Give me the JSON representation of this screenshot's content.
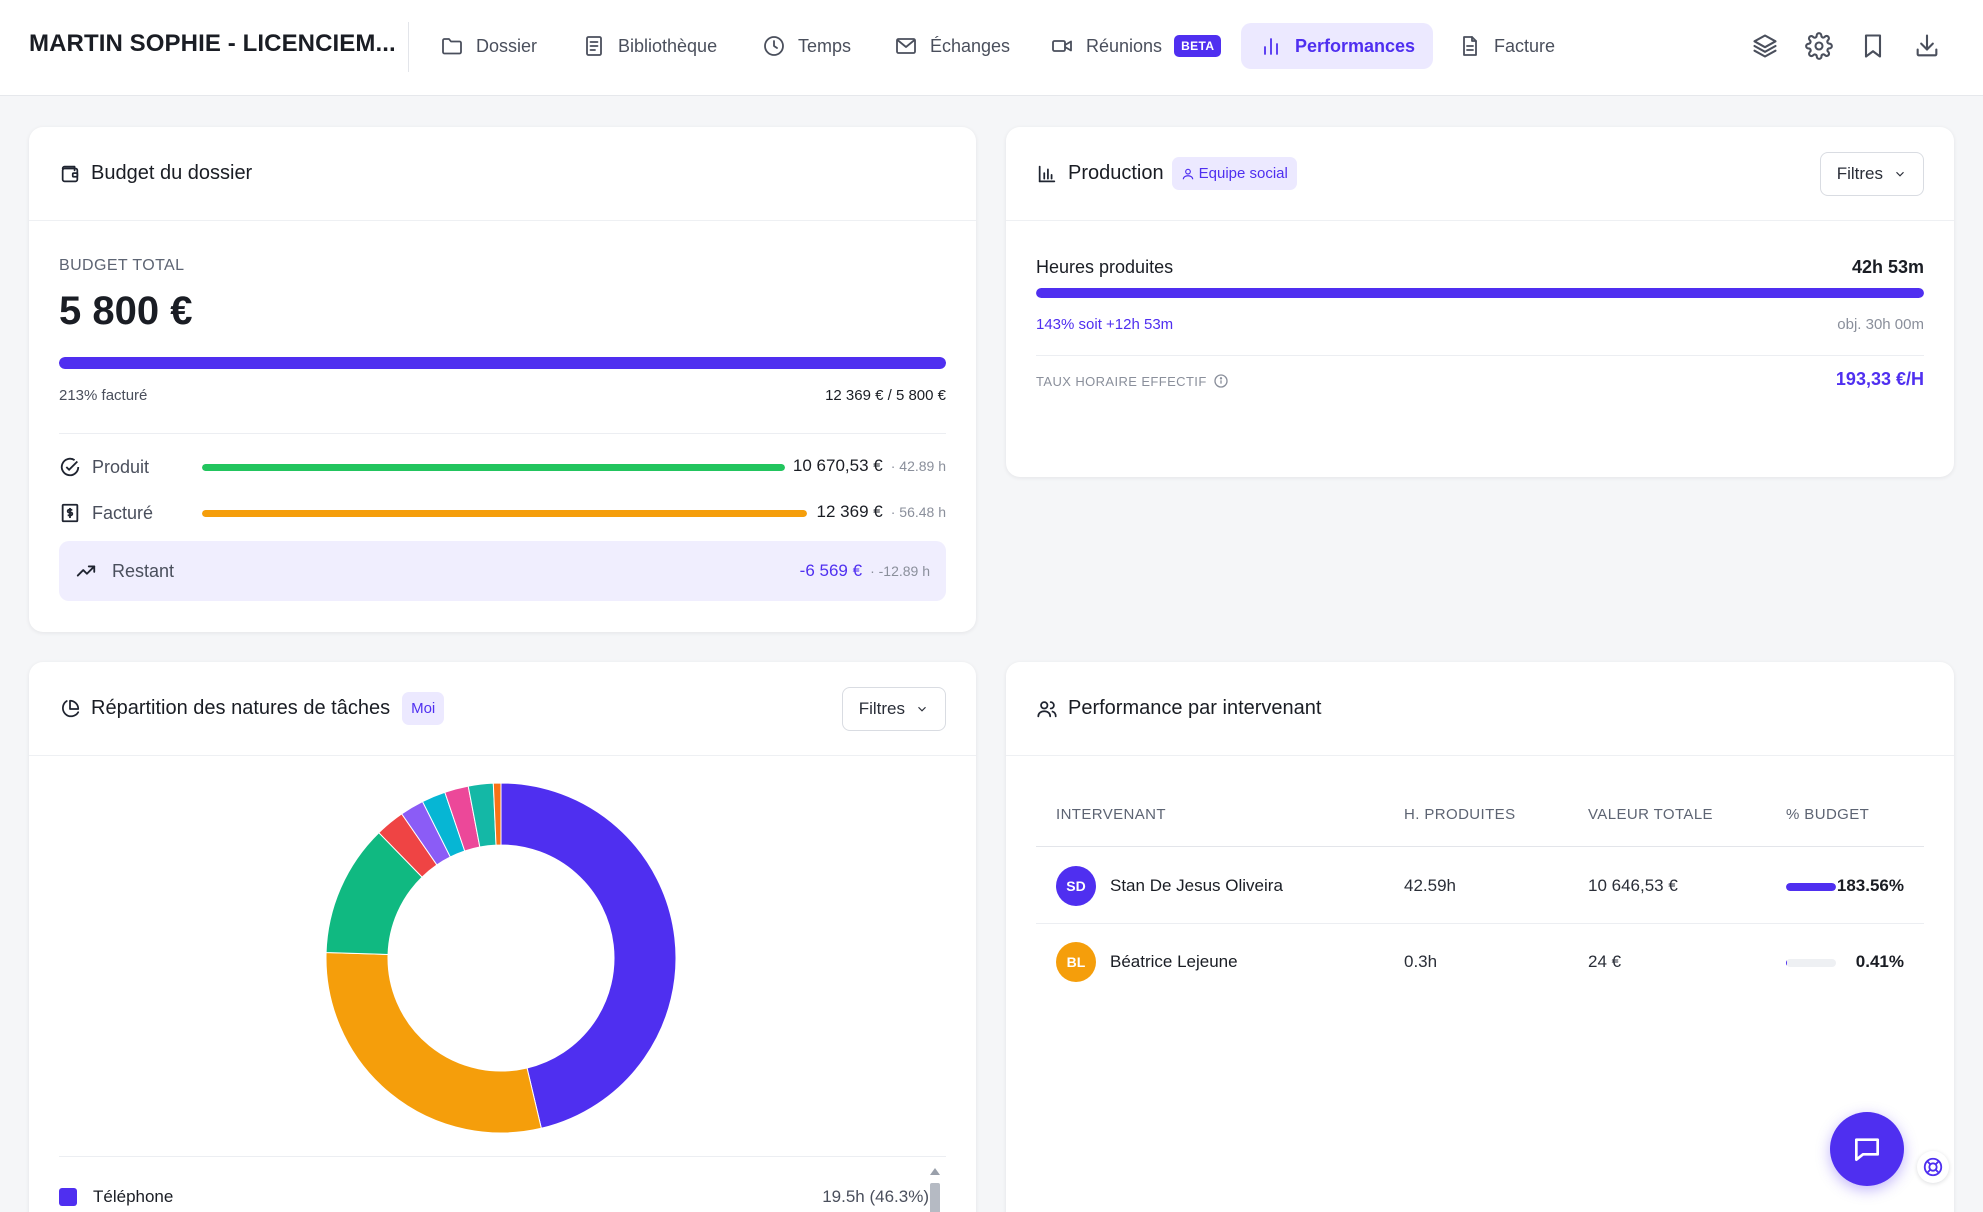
{
  "header": {
    "title": "MARTIN SOPHIE - LICENCIEM...",
    "nav": [
      {
        "label": "Dossier",
        "icon": "folder-icon"
      },
      {
        "label": "Bibliothèque",
        "icon": "book-icon"
      },
      {
        "label": "Temps",
        "icon": "clock-icon"
      },
      {
        "label": "Échanges",
        "icon": "mail-icon"
      },
      {
        "label": "Réunions",
        "icon": "video-icon",
        "badge": "BETA"
      },
      {
        "label": "Performances",
        "icon": "bar-chart-icon",
        "active": true
      },
      {
        "label": "Facture",
        "icon": "file-icon"
      }
    ],
    "tools": [
      "layers-icon",
      "settings-icon",
      "bookmark-icon",
      "download-icon"
    ]
  },
  "budget": {
    "title": "Budget du dossier",
    "total_label": "BUDGET TOTAL",
    "total_value": "5 800 €",
    "progress_pct": 100,
    "billed_pct_text": "213% facturé",
    "billed_ratio_text": "12 369 € / 5 800 €",
    "rows": [
      {
        "label": "Produit",
        "value": "10 670,53 €",
        "sub": "· 42.89 h",
        "fill_pct": 100,
        "color": "#22c55e"
      },
      {
        "label": "Facturé",
        "value": "12 369 €",
        "sub": "· 56.48 h",
        "fill_pct": 100,
        "color": "#f59e0b"
      }
    ],
    "remaining": {
      "label": "Restant",
      "value": "-6 569 €",
      "sub": "· -12.89 h"
    }
  },
  "production": {
    "title": "Production",
    "chip": "Equipe social",
    "filter_label": "Filtres",
    "hours_label": "Heures produites",
    "hours_value": "42h 53m",
    "progress_pct": 100,
    "progress_text": "143% soit +12h 53m",
    "objective_text": "obj. 30h 00m",
    "rate_label": "TAUX HORAIRE EFFECTIF",
    "rate_value": "193,33 €/H"
  },
  "tasks": {
    "title": "Répartition des natures de tâches",
    "chip": "Moi",
    "filter_label": "Filtres",
    "legend_first": {
      "label": "Téléphone",
      "value": "19.5h (46.3%)"
    }
  },
  "chart_data": {
    "type": "pie",
    "variant": "donut",
    "categories": [
      "Téléphone",
      "",
      "",
      "",
      "",
      "",
      "",
      "",
      ""
    ],
    "values": [
      46.3,
      29.2,
      12.2,
      2.7,
      2.2,
      2.2,
      2.2,
      2.3,
      0.7
    ],
    "colors": [
      "#4f2ff0",
      "#f59e0b",
      "#10b981",
      "#ef4444",
      "#8b5cf6",
      "#06b6d4",
      "#ec4899",
      "#14b8a6",
      "#f97316"
    ]
  },
  "performance": {
    "title": "Performance par intervenant",
    "columns": [
      "INTERVENANT",
      "H. PRODUITES",
      "VALEUR TOTALE",
      "% BUDGET"
    ],
    "rows": [
      {
        "initials": "SD",
        "name": "Stan De Jesus Oliveira",
        "hours": "42.59h",
        "value": "10 646,53 €",
        "pct": "183.56%",
        "pct_fill": 100,
        "avatar_color": "#4f2ff0"
      },
      {
        "initials": "BL",
        "name": "Béatrice Lejeune",
        "hours": "0.3h",
        "value": "24 €",
        "pct": "0.41%",
        "pct_fill": 1,
        "avatar_color": "#f59e0b"
      }
    ]
  },
  "floating": {
    "chat": "chat-icon",
    "help": "lifebuoy-icon"
  }
}
